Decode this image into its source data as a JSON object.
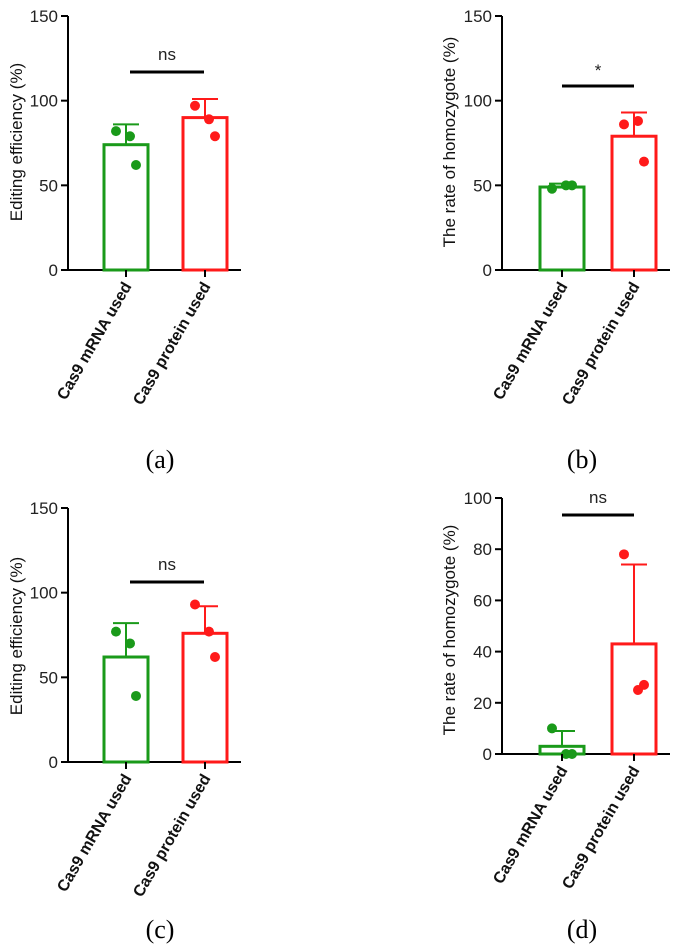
{
  "chart_data": [
    {
      "type": "bar",
      "panel_label": "(a)",
      "ylabel": "Editing efficiency (%)",
      "ylim": [
        0,
        150
      ],
      "yticks": [
        "0",
        "50",
        "100",
        "150"
      ],
      "categories": [
        "Cas9 mRNA used",
        "Cas9 protein used"
      ],
      "colors": [
        "#1a9a1a",
        "#ff1a1a"
      ],
      "values": [
        74,
        90
      ],
      "errors": [
        12,
        11
      ],
      "points": [
        [
          82,
          79,
          62
        ],
        [
          97,
          89,
          79
        ]
      ],
      "significance": "ns"
    },
    {
      "type": "bar",
      "panel_label": "(b)",
      "ylabel": "The rate of homozygote (%)",
      "ylim": [
        0,
        150
      ],
      "yticks": [
        "0",
        "50",
        "100",
        "150"
      ],
      "categories": [
        "Cas9 mRNA used",
        "Cas9 protein used"
      ],
      "colors": [
        "#1a9a1a",
        "#ff1a1a"
      ],
      "values": [
        49,
        79
      ],
      "errors": [
        2,
        14
      ],
      "points": [
        [
          48,
          50,
          50
        ],
        [
          86,
          88,
          64
        ]
      ],
      "significance": "*"
    },
    {
      "type": "bar",
      "panel_label": "(c)",
      "ylabel": "Editing efficiency (%)",
      "ylim": [
        0,
        150
      ],
      "yticks": [
        "0",
        "50",
        "100",
        "150"
      ],
      "categories": [
        "Cas9 mRNA used",
        "Cas9 protein used"
      ],
      "colors": [
        "#1a9a1a",
        "#ff1a1a"
      ],
      "values": [
        62,
        76
      ],
      "errors": [
        20,
        16
      ],
      "points": [
        [
          77,
          70,
          39
        ],
        [
          93,
          77,
          62
        ]
      ],
      "significance": "ns"
    },
    {
      "type": "bar",
      "panel_label": "(d)",
      "ylabel": "The rate of homozygote (%)",
      "ylim": [
        0,
        100
      ],
      "yticks": [
        "0",
        "20",
        "40",
        "60",
        "80",
        "100"
      ],
      "categories": [
        "Cas9 mRNA used",
        "Cas9 protein used"
      ],
      "colors": [
        "#1a9a1a",
        "#ff1a1a"
      ],
      "values": [
        3,
        43
      ],
      "errors": [
        6,
        31
      ],
      "points": [
        [
          10,
          0,
          0
        ],
        [
          78,
          25,
          27
        ]
      ],
      "significance": "ns"
    }
  ]
}
